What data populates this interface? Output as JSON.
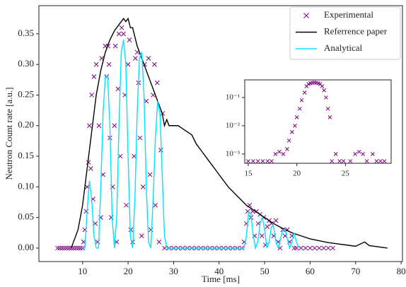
{
  "chart_data": [
    {
      "type": "line",
      "xlabel": "Time [ms]",
      "ylabel": "Neutron Count rate [a.u.]",
      "xlim": [
        0.4,
        80.3
      ],
      "ylim": [
        -0.022,
        0.396
      ],
      "xticks": [
        10,
        20,
        30,
        40,
        50,
        60,
        70,
        80
      ],
      "yticks": [
        {
          "value": 0,
          "label": "0.00"
        },
        0.05,
        {
          "value": 0.1,
          "label": "0.10"
        },
        0.15,
        {
          "value": 0.2,
          "label": "0.20"
        },
        0.25,
        {
          "value": 0.3,
          "label": "0.30"
        },
        0.35
      ],
      "legend": "upper right",
      "series": [
        {
          "name": "Experimental",
          "color": "#800080",
          "style": "marker",
          "x": [
            4.5,
            5,
            5.5,
            6,
            6.5,
            7,
            7.5,
            8,
            8.5,
            9,
            9.5,
            10,
            10.2,
            10.5,
            10.8,
            11,
            11.3,
            11.5,
            11.8,
            12,
            12.3,
            12.5,
            12.8,
            13,
            13.3,
            13.6,
            14,
            14.2,
            14.5,
            15,
            15.3,
            15.6,
            15.8,
            16,
            16.3,
            16.6,
            17,
            17.2,
            17.5,
            17.8,
            18,
            18.3,
            18.6,
            19,
            19.3,
            19.6,
            20,
            20.3,
            20.6,
            21,
            21.3,
            21.6,
            22,
            22.3,
            22.6,
            23,
            23.3,
            23.6,
            24,
            24.5,
            24.8,
            25,
            25.5,
            25.8,
            26,
            26.4,
            26.8,
            27.2,
            27.6,
            28,
            29,
            30,
            31,
            32,
            33,
            34,
            35,
            36,
            37,
            38,
            39,
            40,
            41,
            42,
            43,
            44,
            45,
            45.5,
            46,
            46.3,
            46.7,
            47,
            47.4,
            47.8,
            48.2,
            48.6,
            49,
            49.4,
            49.8,
            50.2,
            50.6,
            51,
            51.5,
            52,
            52.5,
            53,
            53.4,
            54,
            54.5,
            55,
            55.5,
            56,
            56.5,
            57,
            58,
            59,
            60,
            61,
            62,
            63,
            64,
            65
          ],
          "values": [
            0,
            0,
            0,
            0,
            0,
            0,
            0,
            0,
            0,
            0,
            0,
            0,
            0.01,
            0.03,
            0.06,
            0.1,
            0.14,
            0.2,
            0.13,
            0.25,
            0.08,
            0.28,
            0.04,
            0.3,
            0.01,
            0.2,
            0.05,
            0.31,
            0.12,
            0.33,
            0.28,
            0.33,
            0.3,
            0.18,
            0.05,
            0.1,
            0.2,
            0.33,
            0.01,
            0.26,
            0.35,
            0.15,
            0.36,
            0.35,
            0.25,
            0.07,
            0.3,
            0.34,
            0.03,
            0.01,
            0.15,
            0.31,
            0.32,
            0.27,
            0.18,
            0.02,
            0.1,
            0.3,
            0.24,
            0.31,
            0.12,
            0.03,
            0.25,
            0.3,
            0.07,
            0.27,
            0.01,
            0.16,
            0.22,
            0,
            0,
            0,
            0,
            0,
            0,
            0,
            0,
            0,
            0,
            0,
            0,
            0,
            0,
            0,
            0,
            0,
            0,
            0.01,
            0.04,
            0.06,
            0.07,
            0.05,
            0.06,
            0.02,
            0.06,
            0.04,
            0.055,
            0.02,
            0.05,
            0.005,
            0.035,
            0.045,
            0.04,
            0.02,
            0.045,
            0.01,
            0,
            0.03,
            0.02,
            0.03,
            0.01,
            0.02,
            0,
            0,
            0,
            0,
            0,
            0,
            0,
            0,
            0,
            0
          ]
        },
        {
          "name": "Referrence paper",
          "color": "#000000",
          "style": "line",
          "x": [
            7.5,
            8,
            9,
            10,
            11,
            12,
            13,
            14,
            15,
            16,
            17,
            18,
            19,
            19.5,
            20,
            20.5,
            21,
            22,
            23,
            24,
            25,
            26,
            27,
            27.5,
            28,
            28.5,
            29,
            30,
            31,
            32,
            33,
            34,
            35,
            36,
            37,
            38,
            39,
            40,
            42,
            44,
            46,
            48,
            50,
            52,
            54,
            56,
            58,
            60,
            62,
            64,
            66,
            68,
            70,
            72,
            73,
            75,
            77
          ],
          "values": [
            0,
            0.01,
            0.03,
            0.07,
            0.13,
            0.19,
            0.25,
            0.29,
            0.32,
            0.34,
            0.355,
            0.365,
            0.375,
            0.37,
            0.375,
            0.36,
            0.36,
            0.33,
            0.31,
            0.29,
            0.27,
            0.25,
            0.23,
            0.22,
            0.2,
            0.21,
            0.2,
            0.2,
            0.2,
            0.195,
            0.19,
            0.185,
            0.17,
            0.16,
            0.15,
            0.14,
            0.13,
            0.12,
            0.1,
            0.085,
            0.07,
            0.06,
            0.05,
            0.04,
            0.032,
            0.025,
            0.02,
            0.015,
            0.012,
            0.009,
            0.007,
            0.005,
            0.003,
            0.01,
            0.004,
            0.002,
            0
          ]
        },
        {
          "name": "Analytical",
          "color": "#00e5ff",
          "style": "line",
          "x": [
            10,
            10.5,
            11,
            11.5,
            12,
            12.5,
            13,
            13.5,
            14,
            14.5,
            15,
            15.5,
            16,
            16.5,
            17,
            17.5,
            18,
            18.5,
            19,
            19.5,
            20,
            20.5,
            21,
            21.5,
            22,
            22.5,
            23,
            23.5,
            24,
            24.5,
            25,
            25.5,
            26,
            26.5,
            27,
            27.5,
            28,
            28.5,
            45.5,
            46,
            46.5,
            47,
            47.5,
            48,
            48.5,
            49,
            49.5,
            50,
            50.5,
            51,
            51.5,
            52,
            52.5,
            53,
            53.5,
            54,
            54.5,
            55,
            55.5,
            56,
            56.5,
            57,
            57.5
          ],
          "values": [
            0,
            0,
            0.06,
            0.11,
            0.08,
            0.02,
            0,
            0,
            0.1,
            0.22,
            0.28,
            0.28,
            0.2,
            0.05,
            0,
            0.05,
            0.2,
            0.32,
            0.34,
            0.3,
            0.15,
            0.02,
            0,
            0.08,
            0.22,
            0.31,
            0.32,
            0.25,
            0.1,
            0.01,
            0,
            0.08,
            0.18,
            0.24,
            0.22,
            0.12,
            0.02,
            0,
            0,
            0.02,
            0.06,
            0.055,
            0.02,
            0,
            0.01,
            0.04,
            0.05,
            0.03,
            0,
            0.01,
            0.035,
            0.035,
            0.01,
            0,
            0.015,
            0.03,
            0.03,
            0.015,
            0,
            0.01,
            0.025,
            0.01,
            0
          ]
        }
      ]
    },
    {
      "type": "scatter",
      "log_y": true,
      "xlim": [
        14.64,
        29.7
      ],
      "ylim": [
        0.00047,
        0.42
      ],
      "xticks": [
        15,
        20,
        25
      ],
      "yticks": [
        {
          "value": 0.001,
          "label": "10⁻³"
        },
        {
          "value": 0.01,
          "label": "10⁻²"
        },
        {
          "value": 0.1,
          "label": "10⁻¹"
        }
      ],
      "color": "#800080",
      "x": [
        15,
        15.5,
        16,
        16.5,
        17,
        17.4,
        17.8,
        18.2,
        18.6,
        19,
        19.2,
        19.5,
        19.8,
        20,
        20.3,
        20.5,
        20.8,
        21,
        21.2,
        21.4,
        21.6,
        21.8,
        22,
        22.2,
        22.4,
        22.6,
        22.8,
        23,
        23.2,
        23.4,
        23.6,
        24,
        24.4,
        24.8,
        25.5,
        26,
        26.4,
        26.8,
        27.2,
        27.8,
        28.2,
        28.6,
        29
      ],
      "values": [
        0.00056,
        0.00056,
        0.00056,
        0.00056,
        0.00056,
        0.00056,
        0.001,
        0.0012,
        0.001,
        0.0015,
        0.003,
        0.006,
        0.01,
        0.02,
        0.04,
        0.08,
        0.15,
        0.25,
        0.3,
        0.32,
        0.33,
        0.34,
        0.33,
        0.32,
        0.3,
        0.25,
        0.18,
        0.1,
        0.04,
        0.02,
        0.00056,
        0.001,
        0.00056,
        0.00056,
        0.00056,
        0.001,
        0.0012,
        0.001,
        0.00056,
        0.001,
        0.00056,
        0.00056,
        0.00056
      ]
    }
  ]
}
